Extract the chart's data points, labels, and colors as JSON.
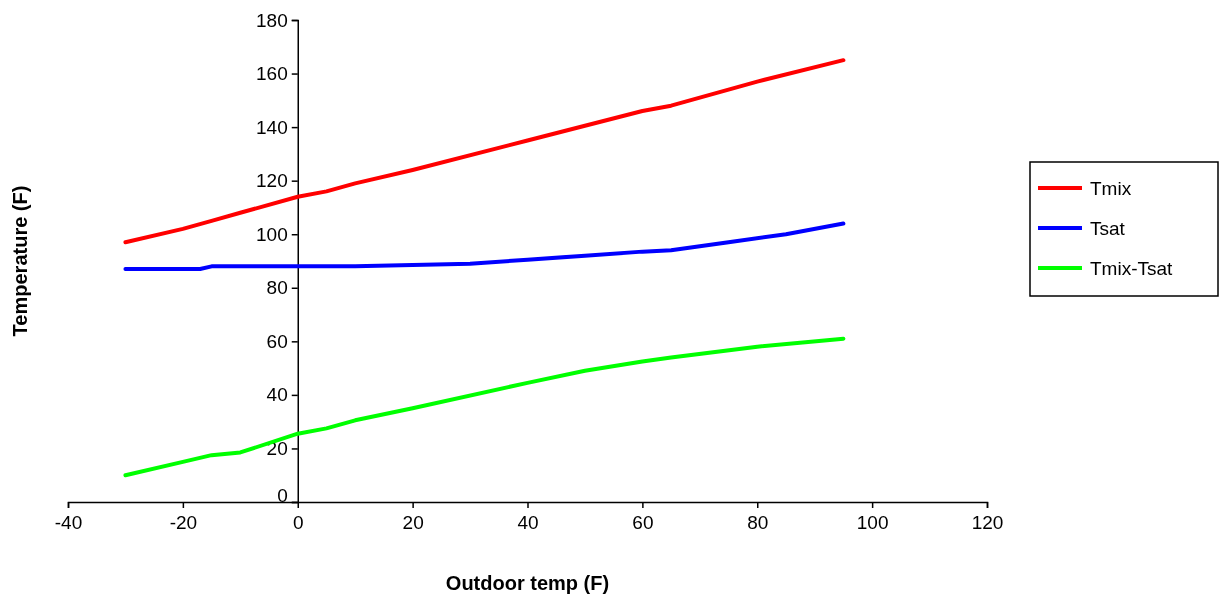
{
  "chart_data": {
    "type": "line",
    "xlabel": "Outdoor temp (F)",
    "ylabel": "Temperature (F)",
    "xlim": [
      -40,
      120
    ],
    "xticks": [
      -40,
      -20,
      0,
      20,
      40,
      60,
      80,
      100,
      120
    ],
    "ylim": [
      0,
      180
    ],
    "yticks": [
      0,
      20,
      40,
      60,
      80,
      100,
      120,
      140,
      160,
      180
    ],
    "legend": "right",
    "grid": false,
    "marker": "none",
    "line_style": "solid",
    "series": [
      {
        "name": "Tmix",
        "color": "#ff0000",
        "x": [
          -30,
          -20,
          -15,
          -10,
          0,
          5,
          10,
          20,
          40,
          60,
          65,
          80,
          95
        ],
        "values": [
          97,
          102,
          105,
          108,
          114,
          116,
          119,
          124,
          135,
          146,
          148,
          157,
          165
        ]
      },
      {
        "name": "Tsat",
        "color": "#0000ff",
        "x": [
          -30,
          -17,
          -15,
          0,
          10,
          20,
          30,
          40,
          50,
          60,
          65,
          75,
          85,
          95
        ],
        "values": [
          87,
          87,
          88,
          88,
          88,
          88.5,
          89,
          90.5,
          92,
          93.5,
          94,
          97,
          100,
          104
        ]
      },
      {
        "name": "Tmix-Tsat",
        "color": "#00ff00",
        "x": [
          -30,
          -20,
          -15,
          -10,
          0,
          5,
          10,
          20,
          40,
          50,
          60,
          65,
          80,
          95
        ],
        "values": [
          10,
          15,
          17.5,
          18.5,
          25.5,
          27.5,
          30.5,
          35,
          44.5,
          49,
          52.5,
          54,
          58,
          61
        ]
      }
    ]
  }
}
